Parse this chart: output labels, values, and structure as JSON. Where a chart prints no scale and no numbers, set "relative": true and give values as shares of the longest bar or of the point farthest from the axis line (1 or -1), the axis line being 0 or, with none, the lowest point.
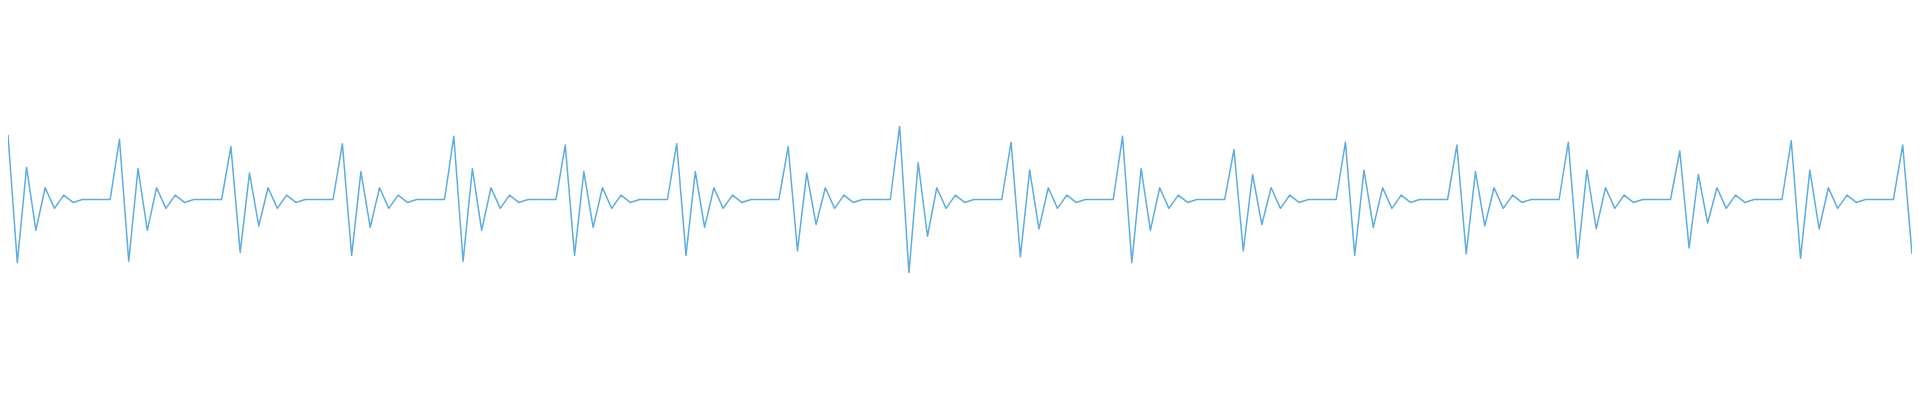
{
  "chart_data": {
    "type": "line",
    "relative": true,
    "grid": false,
    "legend": false,
    "tick_labels": false,
    "marker": "none",
    "line_style": "solid",
    "categories": [
      null,
      null,
      null,
      null,
      null,
      null,
      null,
      null,
      null,
      null,
      null,
      null,
      null,
      null,
      null,
      null,
      null,
      null,
      null,
      null,
      null,
      null,
      null,
      null,
      null,
      null,
      null,
      null,
      null,
      null,
      null,
      null,
      null,
      null,
      null,
      null,
      null,
      null,
      null,
      null,
      null,
      null,
      null,
      null,
      null,
      null,
      null,
      null,
      null,
      null,
      null,
      null,
      null,
      null,
      null,
      null,
      null,
      null,
      null,
      null,
      null,
      null,
      null,
      null,
      null,
      null,
      null,
      null,
      null,
      null,
      null,
      null,
      null,
      null,
      null,
      null,
      null,
      null,
      null,
      null,
      null,
      null,
      null,
      null,
      null,
      null,
      null,
      null,
      null,
      null,
      null,
      null,
      null,
      null,
      null,
      null,
      null,
      null,
      null,
      null,
      null,
      null,
      null,
      null,
      null,
      null,
      null,
      null,
      null,
      null,
      null,
      null,
      null,
      null,
      null,
      null,
      null,
      null,
      null,
      null,
      null,
      null,
      null,
      null,
      null,
      null,
      null,
      null,
      null,
      null,
      null,
      null,
      null,
      null,
      null,
      null,
      null,
      null,
      null,
      null,
      null,
      null,
      null,
      null,
      null,
      null,
      null,
      null,
      null,
      null,
      null,
      null,
      null,
      null,
      null,
      null,
      null,
      null,
      null,
      null,
      null,
      null,
      null,
      null,
      null,
      null,
      null,
      null,
      null,
      null,
      null,
      null,
      null,
      null,
      null,
      null,
      null,
      null,
      null,
      null,
      null,
      null,
      null,
      null,
      null,
      null,
      null,
      null,
      null,
      null,
      null,
      null,
      null,
      null,
      null,
      null,
      null,
      null,
      null,
      null,
      null,
      null,
      null,
      null,
      null,
      null
    ],
    "series": [
      {
        "color": "#5dade2",
        "values": [
          0.94,
          0.07,
          0.72,
          0.29,
          0.58,
          0.44,
          0.53,
          0.48,
          0.5,
          0.5,
          0.5,
          0.5,
          0.91,
          0.08,
          0.71,
          0.29,
          0.58,
          0.44,
          0.53,
          0.48,
          0.5,
          0.5,
          0.5,
          0.5,
          0.86,
          0.14,
          0.68,
          0.32,
          0.58,
          0.44,
          0.53,
          0.48,
          0.5,
          0.5,
          0.5,
          0.5,
          0.88,
          0.12,
          0.69,
          0.31,
          0.58,
          0.44,
          0.53,
          0.48,
          0.5,
          0.5,
          0.5,
          0.5,
          0.93,
          0.08,
          0.71,
          0.29,
          0.58,
          0.44,
          0.53,
          0.48,
          0.5,
          0.5,
          0.5,
          0.5,
          0.87,
          0.12,
          0.69,
          0.31,
          0.58,
          0.44,
          0.53,
          0.48,
          0.5,
          0.5,
          0.5,
          0.5,
          0.88,
          0.12,
          0.69,
          0.31,
          0.58,
          0.44,
          0.53,
          0.48,
          0.5,
          0.5,
          0.5,
          0.5,
          0.86,
          0.15,
          0.68,
          0.33,
          0.58,
          0.44,
          0.53,
          0.48,
          0.5,
          0.5,
          0.5,
          0.5,
          1,
          0,
          0.75,
          0.25,
          0.58,
          0.44,
          0.53,
          0.48,
          0.5,
          0.5,
          0.5,
          0.5,
          0.89,
          0.11,
          0.7,
          0.3,
          0.58,
          0.44,
          0.53,
          0.48,
          0.5,
          0.5,
          0.5,
          0.5,
          0.93,
          0.07,
          0.71,
          0.29,
          0.58,
          0.44,
          0.53,
          0.48,
          0.5,
          0.5,
          0.5,
          0.5,
          0.84,
          0.15,
          0.67,
          0.33,
          0.58,
          0.44,
          0.53,
          0.48,
          0.5,
          0.5,
          0.5,
          0.5,
          0.89,
          0.12,
          0.7,
          0.31,
          0.58,
          0.44,
          0.53,
          0.48,
          0.5,
          0.5,
          0.5,
          0.5,
          0.87,
          0.13,
          0.69,
          0.32,
          0.58,
          0.44,
          0.53,
          0.48,
          0.5,
          0.5,
          0.5,
          0.5,
          0.89,
          0.1,
          0.7,
          0.3,
          0.58,
          0.44,
          0.53,
          0.48,
          0.5,
          0.5,
          0.5,
          0.5,
          0.83,
          0.17,
          0.67,
          0.34,
          0.58,
          0.44,
          0.53,
          0.48,
          0.5,
          0.5,
          0.5,
          0.5,
          0.9,
          0.1,
          0.7,
          0.3,
          0.58,
          0.44,
          0.53,
          0.48,
          0.5,
          0.5,
          0.5,
          0.5,
          0.87,
          0.13
        ]
      }
    ]
  }
}
